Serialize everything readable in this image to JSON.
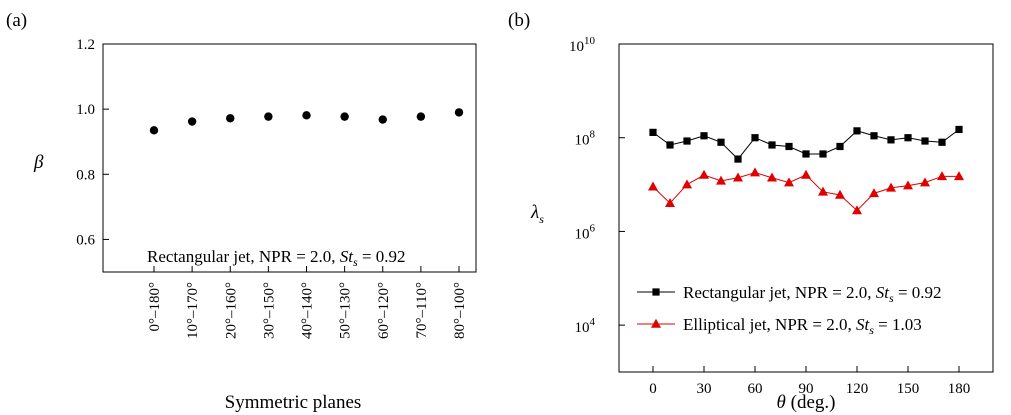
{
  "figure": {
    "panel_a_label": "(a)",
    "panel_b_label": "(b)"
  },
  "chart_data": [
    {
      "type": "scatter",
      "panel": "(a)",
      "ylabel": "β",
      "xlabel": "Symmetric planes",
      "categories": [
        "0°–180°",
        "10°–170°",
        "20°–160°",
        "30°–150°",
        "40°–140°",
        "50°–130°",
        "60°–120°",
        "70°–110°",
        "80°–100°"
      ],
      "values": [
        0.935,
        0.962,
        0.972,
        0.977,
        0.981,
        0.977,
        0.968,
        0.977,
        0.99
      ],
      "ylim": [
        0.5,
        1.2
      ],
      "yticks": [
        "0.6",
        "0.8",
        "1.0",
        "1.2"
      ],
      "annotation": {
        "prefix": "Rectangular jet, NPR = 2.0, ",
        "sym_main": "St",
        "sym_sub": "s",
        "suffix": " = 0.92"
      },
      "color": "#000000",
      "grid": false
    },
    {
      "type": "line",
      "panel": "(b)",
      "ylabel_main": "λ",
      "ylabel_sub": "s",
      "xlabel_main": "θ",
      "xlabel_rest": " (deg.)",
      "x": [
        0,
        10,
        20,
        30,
        40,
        50,
        60,
        70,
        80,
        90,
        100,
        110,
        120,
        130,
        140,
        150,
        160,
        170,
        180
      ],
      "xticks": [
        "0",
        "30",
        "60",
        "90",
        "120",
        "150",
        "180"
      ],
      "xlim": [
        -20,
        200
      ],
      "yscale": "log",
      "ylim": [
        1000,
        10000000000
      ],
      "ytick_base": "10",
      "ytick_exponents": [
        "4",
        "6",
        "8",
        "10"
      ],
      "legend_position": "bottom-left",
      "grid": false,
      "series": [
        {
          "name_prefix": "Rectangular jet, NPR = 2.0, ",
          "name_sym_main": "St",
          "name_sym_sub": "s",
          "name_suffix": " = 0.92",
          "marker": "square",
          "color": "#000000",
          "values": [
            130000000,
            70000000,
            85000000,
            110000000,
            80000000,
            35000000,
            100000000,
            70000000,
            65000000,
            45000000,
            45000000,
            65000000,
            140000000,
            110000000,
            90000000,
            100000000,
            85000000,
            80000000,
            150000000
          ]
        },
        {
          "name_prefix": "Elliptical jet, NPR = 2.0, ",
          "name_sym_main": "St",
          "name_sym_sub": "s",
          "name_suffix": " = 1.03",
          "marker": "triangle",
          "color": "#e00000",
          "values": [
            9000000,
            4000000,
            10000000,
            16000000,
            12000000,
            14000000,
            18000000,
            14000000,
            11000000,
            16000000,
            7000000,
            6000000,
            2800000,
            6500000,
            8500000,
            9500000,
            11000000,
            15000000,
            15000000
          ]
        }
      ]
    }
  ]
}
